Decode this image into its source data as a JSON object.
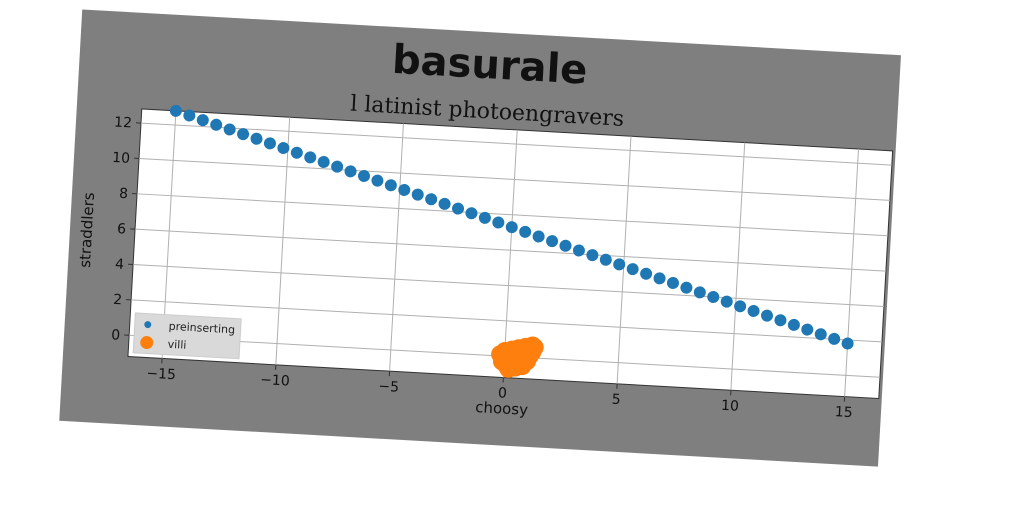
{
  "chart_data": {
    "type": "scatter",
    "title": "basurale",
    "subtitle": "l latinist photoengravers",
    "xlabel": "choosy",
    "ylabel": "straddlers",
    "xlim": [
      -16.5,
      16.5
    ],
    "ylim": [
      -1.2,
      12.8
    ],
    "xticks": [
      -15,
      -10,
      -5,
      0,
      5,
      10,
      15
    ],
    "yticks": [
      0,
      2,
      4,
      6,
      8,
      10,
      12
    ],
    "grid": true,
    "legend_position": "lower-left",
    "series": [
      {
        "name": "preinserting",
        "color": "#1f77b4",
        "marker_size": "small",
        "x": [
          -15.0,
          -14.4,
          -13.8,
          -13.2,
          -12.6,
          -12.0,
          -11.4,
          -10.8,
          -10.2,
          -9.6,
          -9.0,
          -8.4,
          -7.8,
          -7.2,
          -6.6,
          -6.0,
          -5.4,
          -4.8,
          -4.2,
          -3.6,
          -3.0,
          -2.4,
          -1.8,
          -1.2,
          -0.6,
          0.0,
          0.6,
          1.2,
          1.8,
          2.4,
          3.0,
          3.6,
          4.2,
          4.8,
          5.4,
          6.0,
          6.6,
          7.2,
          7.8,
          8.4,
          9.0,
          9.6,
          10.2,
          10.8,
          11.4,
          12.0,
          12.6,
          13.2,
          13.8,
          14.4,
          15.0
        ],
        "y": [
          12.8,
          12.58,
          12.36,
          12.14,
          11.92,
          11.7,
          11.48,
          11.26,
          11.04,
          10.82,
          10.6,
          10.38,
          10.16,
          9.94,
          9.72,
          9.5,
          9.28,
          9.06,
          8.84,
          8.62,
          8.4,
          8.18,
          7.96,
          7.74,
          7.52,
          7.3,
          7.08,
          6.86,
          6.64,
          6.42,
          6.2,
          5.98,
          5.76,
          5.54,
          5.32,
          5.1,
          4.88,
          4.66,
          4.44,
          4.22,
          4.0,
          3.78,
          3.56,
          3.34,
          3.12,
          2.9,
          2.68,
          2.46,
          2.24,
          2.02,
          1.8
        ]
      },
      {
        "name": "villi",
        "color": "#ff7f0e",
        "marker_size": "large",
        "x": [
          0.0,
          0.3,
          0.6,
          0.9,
          1.2,
          -0.2,
          0.1,
          0.4,
          0.7,
          1.0,
          1.3,
          0.0,
          0.3,
          0.6,
          0.9,
          1.2,
          -0.1,
          0.2,
          0.5,
          0.8,
          1.1,
          0.1,
          0.4,
          0.7,
          1.0,
          0.2,
          0.5,
          0.8
        ],
        "y": [
          0.3,
          0.4,
          0.5,
          0.6,
          0.7,
          0.1,
          0.2,
          0.3,
          0.4,
          0.5,
          0.6,
          -0.1,
          0.0,
          0.1,
          0.2,
          0.3,
          -0.3,
          -0.2,
          -0.1,
          0.0,
          0.1,
          -0.5,
          -0.4,
          -0.3,
          -0.2,
          -0.7,
          -0.6,
          -0.5
        ]
      }
    ]
  }
}
